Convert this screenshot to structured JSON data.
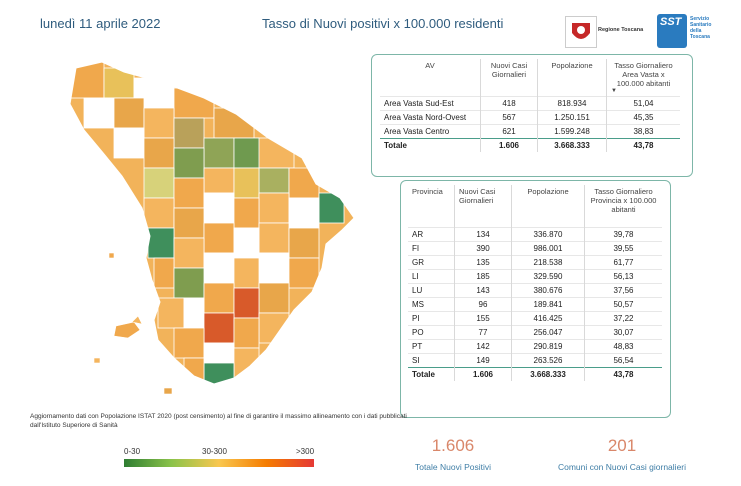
{
  "header": {
    "date": "lunedì 11 aprile 2022",
    "title": "Tasso di Nuovi positivi x 100.000 residenti",
    "logo_regione": "Regione Toscana",
    "logo_sst_badge": "SST",
    "logo_sst_lines": [
      "Servizio",
      "Sanitario",
      "della",
      "Toscana"
    ]
  },
  "area_vasta_table": {
    "headers": [
      "AV",
      "Nuovi Casi Giornalieri",
      "Popolazione",
      "Tasso Giornaliero Area Vasta x 100.000 abitanti"
    ],
    "sort_indicator": "▼",
    "rows": [
      {
        "av": "Area Vasta Sud-Est",
        "casi": "418",
        "pop": "818.934",
        "tasso": "51,04"
      },
      {
        "av": "Area Vasta Nord-Ovest",
        "casi": "567",
        "pop": "1.250.151",
        "tasso": "45,35"
      },
      {
        "av": "Area Vasta Centro",
        "casi": "621",
        "pop": "1.599.248",
        "tasso": "38,83"
      }
    ],
    "total": {
      "av": "Totale",
      "casi": "1.606",
      "pop": "3.668.333",
      "tasso": "43,78"
    }
  },
  "provincia_table": {
    "headers": [
      "Provincia",
      "Nuovi Casi Giornalieri",
      "Popolazione",
      "Tasso Giornaliero Provincia x 100.000 abitanti"
    ],
    "rows": [
      {
        "prov": "AR",
        "casi": "134",
        "pop": "336.870",
        "tasso": "39,78"
      },
      {
        "prov": "FI",
        "casi": "390",
        "pop": "986.001",
        "tasso": "39,55"
      },
      {
        "prov": "GR",
        "casi": "135",
        "pop": "218.538",
        "tasso": "61,77"
      },
      {
        "prov": "LI",
        "casi": "185",
        "pop": "329.590",
        "tasso": "56,13"
      },
      {
        "prov": "LU",
        "casi": "143",
        "pop": "380.676",
        "tasso": "37,56"
      },
      {
        "prov": "MS",
        "casi": "96",
        "pop": "189.841",
        "tasso": "50,57"
      },
      {
        "prov": "PI",
        "casi": "155",
        "pop": "416.425",
        "tasso": "37,22"
      },
      {
        "prov": "PO",
        "casi": "77",
        "pop": "256.047",
        "tasso": "30,07"
      },
      {
        "prov": "PT",
        "casi": "142",
        "pop": "290.819",
        "tasso": "48,83"
      },
      {
        "prov": "SI",
        "casi": "149",
        "pop": "263.526",
        "tasso": "56,54"
      }
    ],
    "total": {
      "prov": "Totale",
      "casi": "1.606",
      "pop": "3.668.333",
      "tasso": "43,78"
    }
  },
  "note": "Aggiornamento dati con Popolazione ISTAT 2020 (post censimento) al fine di garantire il massimo allineamento con i dati pubblicati dall'Istituto Superiore di Sanità",
  "legend": {
    "low": "0-30",
    "mid": "30-300",
    "high": ">300"
  },
  "kpis": [
    {
      "value": "1.606",
      "label": "Totale Nuovi Positivi"
    },
    {
      "value": "201",
      "label": "Comuni con Nuovi Casi giornalieri"
    }
  ],
  "colors": {
    "accent": "#2f5c7e",
    "kpi": "#d9876a",
    "border": "#7db6a8"
  }
}
